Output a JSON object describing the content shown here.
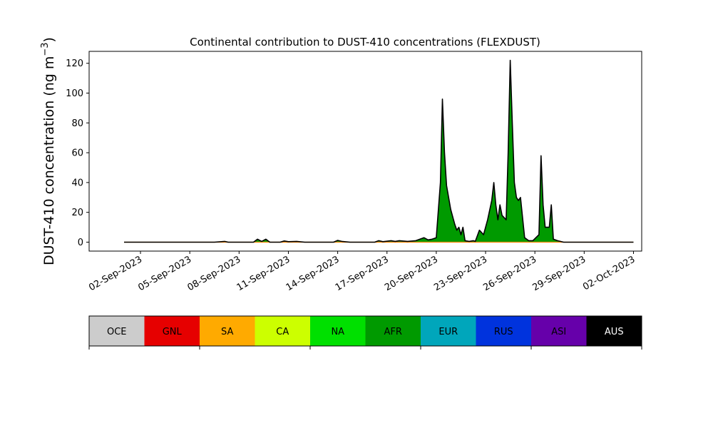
{
  "chart_data": {
    "type": "area",
    "title": "Continental contribution to DUST-410 concentrations (FLEXDUST)",
    "ylabel_main": "DUST-410 concentration (ng m",
    "ylabel_sup": "−3",
    "ylabel_close": ")",
    "xlabel": "",
    "ylim": [
      -6,
      128
    ],
    "xlim": [
      "2023-08-29T21:00",
      "2023-10-02T12:00"
    ],
    "yticks": [
      0,
      20,
      40,
      60,
      80,
      100,
      120
    ],
    "xticks": [
      {
        "date": "2023-09-02",
        "label": "02-Sep-2023"
      },
      {
        "date": "2023-09-05",
        "label": "05-Sep-2023"
      },
      {
        "date": "2023-09-08",
        "label": "08-Sep-2023"
      },
      {
        "date": "2023-09-11",
        "label": "11-Sep-2023"
      },
      {
        "date": "2023-09-14",
        "label": "14-Sep-2023"
      },
      {
        "date": "2023-09-17",
        "label": "17-Sep-2023"
      },
      {
        "date": "2023-09-20",
        "label": "20-Sep-2023"
      },
      {
        "date": "2023-09-23",
        "label": "23-Sep-2023"
      },
      {
        "date": "2023-09-26",
        "label": "26-Sep-2023"
      },
      {
        "date": "2023-09-29",
        "label": "29-Sep-2023"
      },
      {
        "date": "2023-10-02",
        "label": "02-Oct-2023"
      }
    ],
    "grid": false,
    "series": [
      {
        "name": "AFR",
        "color": "#009a00",
        "points": [
          [
            "2023-09-01T00:00",
            0
          ],
          [
            "2023-09-04T00:00",
            0
          ],
          [
            "2023-09-05T00:00",
            0
          ],
          [
            "2023-09-06T12:00",
            0
          ],
          [
            "2023-09-07T03:00",
            0.5
          ],
          [
            "2023-09-07T08:00",
            0
          ],
          [
            "2023-09-08T00:00",
            0
          ],
          [
            "2023-09-08T21:00",
            0
          ],
          [
            "2023-09-09T03:00",
            2
          ],
          [
            "2023-09-09T09:00",
            0.5
          ],
          [
            "2023-09-09T15:00",
            2
          ],
          [
            "2023-09-09T21:00",
            0
          ],
          [
            "2023-09-10T12:00",
            0
          ],
          [
            "2023-09-10T18:00",
            0.8
          ],
          [
            "2023-09-11T00:00",
            0.3
          ],
          [
            "2023-09-11T12:00",
            0.5
          ],
          [
            "2023-09-12T00:00",
            0
          ],
          [
            "2023-09-13T18:00",
            0
          ],
          [
            "2023-09-14T00:00",
            1.2
          ],
          [
            "2023-09-14T06:00",
            0.5
          ],
          [
            "2023-09-14T18:00",
            0
          ],
          [
            "2023-09-16T06:00",
            0
          ],
          [
            "2023-09-16T12:00",
            1
          ],
          [
            "2023-09-16T18:00",
            0.3
          ],
          [
            "2023-09-17T06:00",
            1
          ],
          [
            "2023-09-17T12:00",
            0.5
          ],
          [
            "2023-09-17T18:00",
            1
          ],
          [
            "2023-09-18T06:00",
            0.5
          ],
          [
            "2023-09-18T18:00",
            1
          ],
          [
            "2023-09-19T06:00",
            3
          ],
          [
            "2023-09-19T12:00",
            1.5
          ],
          [
            "2023-09-19T18:00",
            2
          ],
          [
            "2023-09-20T00:00",
            3
          ],
          [
            "2023-09-20T06:00",
            40
          ],
          [
            "2023-09-20T09:00",
            96
          ],
          [
            "2023-09-20T12:00",
            60
          ],
          [
            "2023-09-20T15:00",
            38
          ],
          [
            "2023-09-20T21:00",
            22
          ],
          [
            "2023-09-21T03:00",
            12
          ],
          [
            "2023-09-21T06:00",
            8
          ],
          [
            "2023-09-21T09:00",
            10
          ],
          [
            "2023-09-21T12:00",
            5
          ],
          [
            "2023-09-21T15:00",
            10
          ],
          [
            "2023-09-21T18:00",
            1
          ],
          [
            "2023-09-22T00:00",
            0.5
          ],
          [
            "2023-09-22T06:00",
            1
          ],
          [
            "2023-09-22T09:00",
            0.5
          ],
          [
            "2023-09-22T15:00",
            8
          ],
          [
            "2023-09-22T21:00",
            5
          ],
          [
            "2023-09-23T03:00",
            15
          ],
          [
            "2023-09-23T09:00",
            28
          ],
          [
            "2023-09-23T12:00",
            40
          ],
          [
            "2023-09-23T15:00",
            25
          ],
          [
            "2023-09-23T18:00",
            15
          ],
          [
            "2023-09-23T21:00",
            25
          ],
          [
            "2023-09-24T00:00",
            18
          ],
          [
            "2023-09-24T06:00",
            15
          ],
          [
            "2023-09-24T09:00",
            60
          ],
          [
            "2023-09-24T12:00",
            122
          ],
          [
            "2023-09-24T15:00",
            80
          ],
          [
            "2023-09-24T18:00",
            40
          ],
          [
            "2023-09-24T21:00",
            30
          ],
          [
            "2023-09-25T00:00",
            28
          ],
          [
            "2023-09-25T03:00",
            30
          ],
          [
            "2023-09-25T09:00",
            3
          ],
          [
            "2023-09-25T15:00",
            1
          ],
          [
            "2023-09-25T21:00",
            1
          ],
          [
            "2023-09-26T06:00",
            5
          ],
          [
            "2023-09-26T09:00",
            58
          ],
          [
            "2023-09-26T12:00",
            25
          ],
          [
            "2023-09-26T15:00",
            10
          ],
          [
            "2023-09-26T21:00",
            10
          ],
          [
            "2023-09-27T00:00",
            25
          ],
          [
            "2023-09-27T03:00",
            2
          ],
          [
            "2023-09-27T09:00",
            1
          ],
          [
            "2023-09-27T18:00",
            0
          ],
          [
            "2023-09-29T06:00",
            0
          ],
          [
            "2023-09-30T06:00",
            0
          ],
          [
            "2023-10-01T06:00",
            0
          ],
          [
            "2023-10-02T00:00",
            0
          ]
        ]
      }
    ],
    "legend": {
      "placement": "below",
      "entries": [
        {
          "name": "OCE",
          "color": "#cccccc",
          "text_color": "#000000"
        },
        {
          "name": "GNL",
          "color": "#e60000",
          "text_color": "#000000"
        },
        {
          "name": "SA",
          "color": "#ffaa00",
          "text_color": "#000000"
        },
        {
          "name": "CA",
          "color": "#ccff00",
          "text_color": "#000000"
        },
        {
          "name": "NA",
          "color": "#00e000",
          "text_color": "#000000"
        },
        {
          "name": "AFR",
          "color": "#009a00",
          "text_color": "#000000"
        },
        {
          "name": "EUR",
          "color": "#00a6bb",
          "text_color": "#000000"
        },
        {
          "name": "RUS",
          "color": "#0033dd",
          "text_color": "#000000"
        },
        {
          "name": "ASI",
          "color": "#6600aa",
          "text_color": "#000000"
        },
        {
          "name": "AUS",
          "color": "#000000",
          "text_color": "#ffffff"
        }
      ]
    }
  }
}
